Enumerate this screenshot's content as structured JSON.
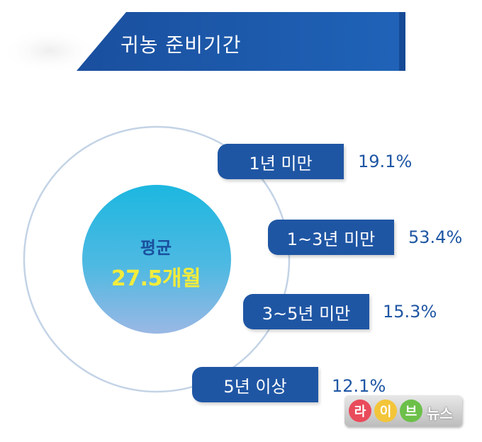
{
  "title": "귀농 준비기간",
  "center": {
    "label": "평균",
    "value": "27.5개월"
  },
  "chart_data": {
    "type": "bar",
    "title": "귀농 준비기간",
    "categories": [
      "1년  미만",
      "1~3년 미만",
      "3~5년 미만",
      "5년 이상"
    ],
    "values": [
      19.1,
      53.4,
      15.3,
      12.1
    ],
    "value_labels": [
      "19.1%",
      "53.4%",
      "15.3%",
      "12.1%"
    ],
    "unit": "%"
  },
  "colors": {
    "banner": "#1f56a4",
    "pill": "#1f56a4",
    "percent_text": "#1f56a4",
    "circle_ring": "#c3d3e6",
    "center_top": "#1cb7e0",
    "center_bottom": "#9ab8e4",
    "avg_value": "#f2ec3c"
  },
  "watermark": {
    "syllables": [
      "라",
      "이",
      "브"
    ],
    "suffix": "뉴스",
    "colors": [
      "#e94b5b",
      "#f3c53a",
      "#6cc04a"
    ]
  }
}
